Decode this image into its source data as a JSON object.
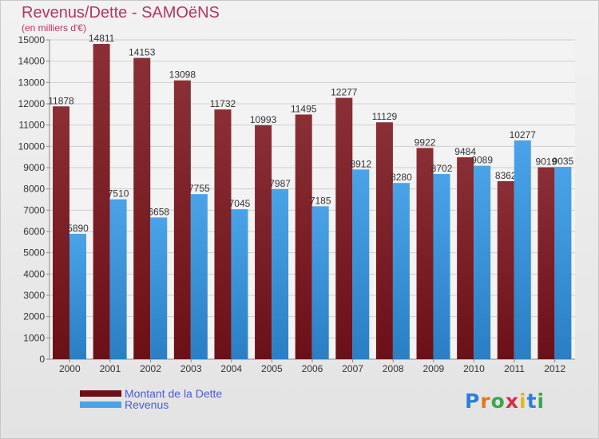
{
  "chart_data": {
    "type": "bar",
    "title": "Revenus/Dette - SAMOëNS",
    "subtitle": "(en milliers d'€)",
    "categories": [
      "2000",
      "2001",
      "2002",
      "2003",
      "2004",
      "2005",
      "2006",
      "2007",
      "2008",
      "2009",
      "2010",
      "2011",
      "2012"
    ],
    "series": [
      {
        "name": "Montant de la Dette",
        "color": "#6b1017",
        "values": [
          11878,
          14811,
          14153,
          13098,
          11732,
          10993,
          11495,
          12277,
          11129,
          9922,
          9484,
          8362,
          9019
        ]
      },
      {
        "name": "Revenus",
        "color": "#4aa3e8",
        "values": [
          5890,
          7510,
          6658,
          7755,
          7045,
          7987,
          7185,
          8912,
          8280,
          8702,
          9089,
          10277,
          9035
        ]
      }
    ],
    "data_labels": [
      [
        "11878",
        "14811",
        "14153",
        "13098",
        "11732",
        "10993",
        "11495",
        "12277",
        "11129",
        "9922",
        "9484",
        "8362",
        "9019"
      ],
      [
        "5890",
        "7510",
        "6658",
        "7755",
        "7045",
        "7987",
        "7185",
        "8912",
        "8280",
        "8702",
        "9089",
        "10277",
        "9035"
      ]
    ],
    "ylim": [
      0,
      15000
    ],
    "yticks": [
      0,
      1000,
      2000,
      3000,
      4000,
      5000,
      6000,
      7000,
      8000,
      9000,
      10000,
      11000,
      12000,
      13000,
      14000,
      15000
    ],
    "grid": true,
    "legend": "bottom-left"
  },
  "logo": {
    "letters": [
      "P",
      "r",
      "o",
      "x",
      "i",
      "t",
      "i"
    ],
    "colors": [
      "#2f7fd6",
      "#e07a1d",
      "#3aa84a",
      "#d62f4a",
      "#e0b81d",
      "#2f7fd6",
      "#3aa84a"
    ]
  }
}
